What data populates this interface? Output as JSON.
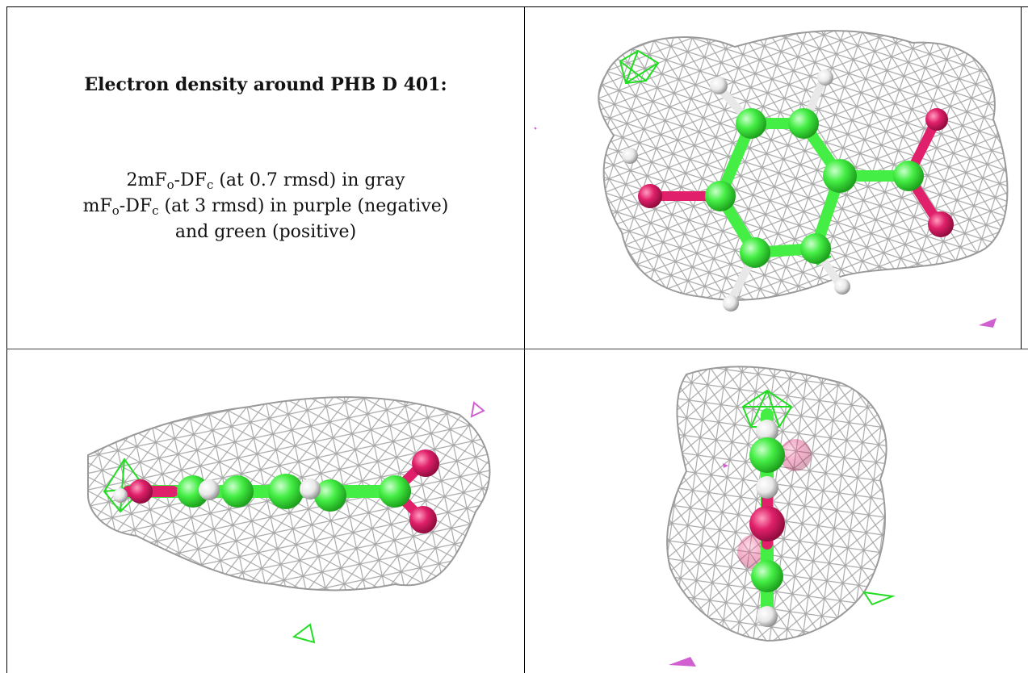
{
  "caption": {
    "title": "Electron density around PHB D 401:",
    "line1": {
      "pre": "2mF",
      "sub1": "o",
      "mid": "-DF",
      "sub2": "c",
      "post": " (at 0.7 rmsd) in gray"
    },
    "line2": {
      "pre": "mF",
      "sub1": "o",
      "mid": "-DF",
      "sub2": "c",
      "post": " (at 3 rmsd) in purple (negative)"
    },
    "line3": "and green (positive)"
  },
  "colors": {
    "mesh_2fofc": "#9a9a9a",
    "mesh_positive": "#22dd22",
    "mesh_negative": "#d060d0",
    "carbon": "#44ee44",
    "oxygen": "#e0206a",
    "hydrogen": "#e8e8e8"
  },
  "views": [
    "top-view",
    "side-view",
    "edge-on-view"
  ]
}
